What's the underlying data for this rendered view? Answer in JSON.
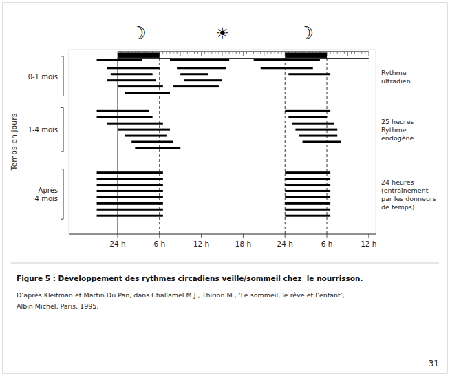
{
  "chart_data": {
    "type": "range_bar",
    "title": "Figure 5 : Développement des rythmes circadiens veille/sommeil chez  le nourrisson.",
    "caption": [
      "D’après Kleitman et Martin Du Pan, dans Challamel M.J., Thirion M., ‘Le sommeil, le rêve et l’enfant’,",
      "Albin Michel, Paris, 1995."
    ],
    "page_number": "31",
    "ylabel": "Temps en jours",
    "xlim": [
      -7,
      37
    ],
    "xticks": [
      {
        "value": 0,
        "label": "24 h"
      },
      {
        "value": 6,
        "label": "6 h"
      },
      {
        "value": 12,
        "label": "12 h"
      },
      {
        "value": 18,
        "label": "18 h"
      },
      {
        "value": 24,
        "label": "24 h"
      },
      {
        "value": 30,
        "label": "6 h"
      },
      {
        "value": 36,
        "label": "12 h"
      }
    ],
    "ylim": [
      10,
      100
    ],
    "tick_labels": "x",
    "grid": false,
    "color": "#000000",
    "night_periods": [
      {
        "start": 0,
        "width": 6
      },
      {
        "start": 24,
        "width": 6
      }
    ],
    "reference_lines_x": [
      6,
      24,
      30
    ],
    "solid_line_x": 0,
    "icons": [
      "☽",
      "☀",
      "☽"
    ],
    "series": [
      {
        "name": "0-1 mois",
        "annotation": "Rythme\nultradien",
        "y": [
          95,
          91,
          88,
          85,
          82,
          79,
          95,
          91,
          88,
          85,
          82,
          95,
          91,
          88
        ],
        "start": [
          -3.0,
          -1.5,
          -1.0,
          -1.5,
          0.0,
          1.0,
          7.5,
          8.5,
          9.0,
          9.5,
          8.0,
          19.5,
          20.5,
          24.5
        ],
        "end": [
          3.5,
          6.0,
          5.0,
          5.5,
          6.5,
          7.5,
          16.0,
          15.5,
          13.0,
          15.0,
          14.5,
          29.0,
          28.0,
          30.5
        ]
      },
      {
        "name": "1-4 mois",
        "annotation": "25 heures\nRythme\nendogène",
        "y": [
          70,
          67,
          64,
          61,
          58,
          55,
          52,
          70,
          67,
          64,
          61,
          58,
          55
        ],
        "start": [
          -3.0,
          -3.0,
          -1.5,
          0.0,
          1.0,
          2.0,
          2.5,
          24.0,
          24.5,
          25.0,
          25.5,
          26.0,
          26.5
        ],
        "end": [
          4.5,
          5.0,
          6.5,
          7.5,
          7.0,
          8.0,
          9.0,
          30.5,
          30.0,
          31.0,
          31.5,
          31.5,
          32.0
        ]
      },
      {
        "name": "Après\n4 mois",
        "annotation": "24 heures\n(entraînement\npar les donneurs\nde temps)",
        "y": [
          40,
          37,
          34,
          31,
          28,
          25,
          22,
          19,
          40,
          37,
          34,
          31,
          28,
          25,
          22,
          19
        ],
        "start": [
          -3.0,
          -3.0,
          -3.0,
          -3.0,
          -3.0,
          -3.0,
          -3.0,
          -3.0,
          24.0,
          24.0,
          24.0,
          24.0,
          24.0,
          24.0,
          24.0,
          24.0
        ],
        "end": [
          6.5,
          6.5,
          6.5,
          6.5,
          6.5,
          6.5,
          6.5,
          6.5,
          30.5,
          30.5,
          30.5,
          30.5,
          30.5,
          30.5,
          30.5,
          30.5
        ]
      }
    ]
  }
}
